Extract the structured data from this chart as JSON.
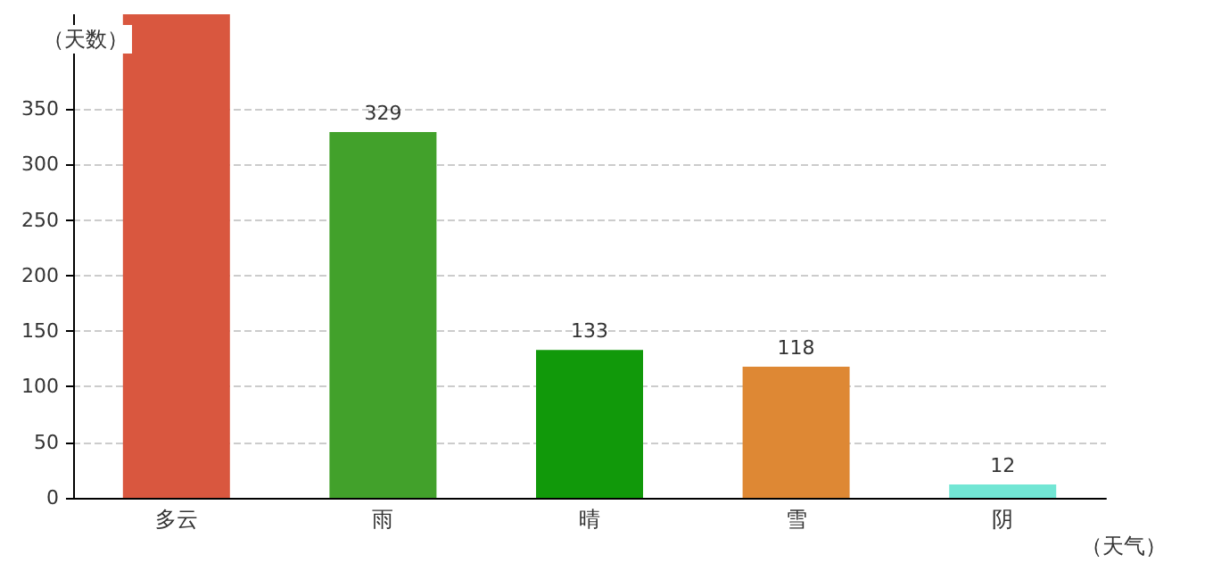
{
  "chart_data": {
    "type": "bar",
    "xlabel": "（天气）",
    "ylabel": "（天数）",
    "categories": [
      "多云",
      "雨",
      "晴",
      "雪",
      "阴"
    ],
    "values": [
      435,
      329,
      133,
      118,
      12
    ],
    "value_labels": [
      null,
      "329",
      "133",
      "118",
      "12"
    ],
    "colors": [
      "#d9573f",
      "#42a12b",
      "#11990a",
      "#de8834",
      "#72e6d4"
    ],
    "ylim": [
      0,
      435
    ],
    "yticks": [
      0,
      50,
      100,
      150,
      200,
      250,
      300,
      350
    ],
    "grid": "y"
  }
}
